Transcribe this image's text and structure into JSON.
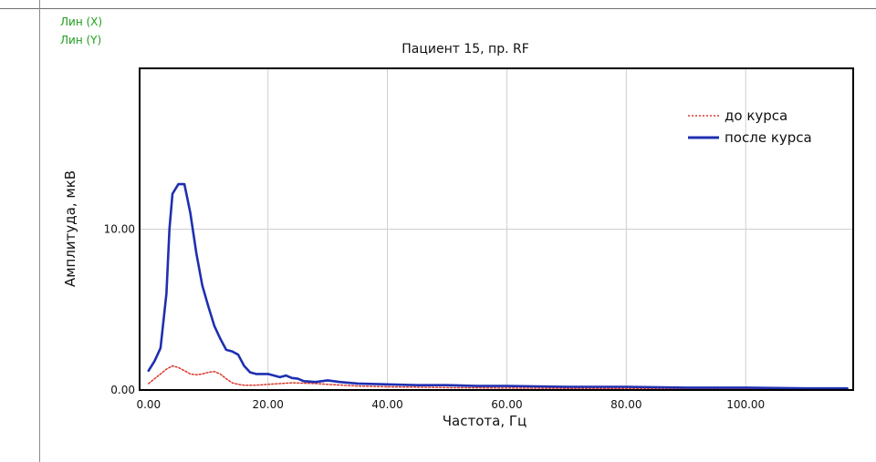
{
  "scale_links": {
    "x": "Лин (X)",
    "y": "Лин (Y)"
  },
  "colors": {
    "before": "#d83a2e",
    "after": "#1f2fb0",
    "grid": "#cfcfcf",
    "frame": "#000000",
    "scale_link": "#1e9e1e"
  },
  "chart_data": {
    "type": "line",
    "title": "Пациент 15, пр. RF",
    "xlabel": "Частота, Гц",
    "ylabel": "Амплитуда, мкВ",
    "xlim": [
      -1.5,
      118
    ],
    "ylim": [
      0,
      20
    ],
    "x_ticks": [
      0,
      20,
      40,
      60,
      80,
      100
    ],
    "x_tick_labels": [
      "0.00",
      "20.00",
      "40.00",
      "60.00",
      "80.00",
      "100.00"
    ],
    "y_ticks": [
      0,
      10
    ],
    "y_tick_labels": [
      "0.00",
      "10.00"
    ],
    "grid": true,
    "legend_position": "top-right",
    "series": [
      {
        "name": "до курса",
        "style": "dotted",
        "x": [
          0,
          1,
          2,
          3,
          4,
          5,
          6,
          7,
          8,
          9,
          10,
          11,
          12,
          13,
          14,
          15,
          16,
          18,
          20,
          24,
          28,
          30,
          35,
          40,
          50,
          60,
          70,
          80,
          90,
          100,
          110,
          117
        ],
        "y": [
          0.4,
          0.7,
          1.0,
          1.3,
          1.5,
          1.4,
          1.2,
          1.0,
          0.95,
          1.0,
          1.1,
          1.15,
          1.0,
          0.7,
          0.45,
          0.35,
          0.3,
          0.3,
          0.35,
          0.45,
          0.4,
          0.35,
          0.25,
          0.2,
          0.15,
          0.12,
          0.1,
          0.1,
          0.08,
          0.08,
          0.06,
          0.06
        ]
      },
      {
        "name": "после курса",
        "style": "solid",
        "x": [
          0,
          1,
          2,
          3,
          3.5,
          4,
          5,
          6,
          7,
          8,
          9,
          10,
          11,
          12,
          13,
          14,
          15,
          16,
          17,
          18,
          20,
          22,
          23,
          24,
          25,
          26,
          28,
          30,
          32,
          35,
          40,
          45,
          50,
          55,
          60,
          70,
          80,
          90,
          100,
          110,
          117
        ],
        "y": [
          1.2,
          1.8,
          2.6,
          6.0,
          10.0,
          12.2,
          12.8,
          12.8,
          11.0,
          8.5,
          6.5,
          5.2,
          4.0,
          3.2,
          2.5,
          2.4,
          2.2,
          1.5,
          1.1,
          1.0,
          1.0,
          0.8,
          0.9,
          0.75,
          0.7,
          0.55,
          0.5,
          0.6,
          0.5,
          0.4,
          0.35,
          0.3,
          0.3,
          0.25,
          0.25,
          0.2,
          0.2,
          0.15,
          0.15,
          0.1,
          0.1
        ]
      }
    ]
  }
}
